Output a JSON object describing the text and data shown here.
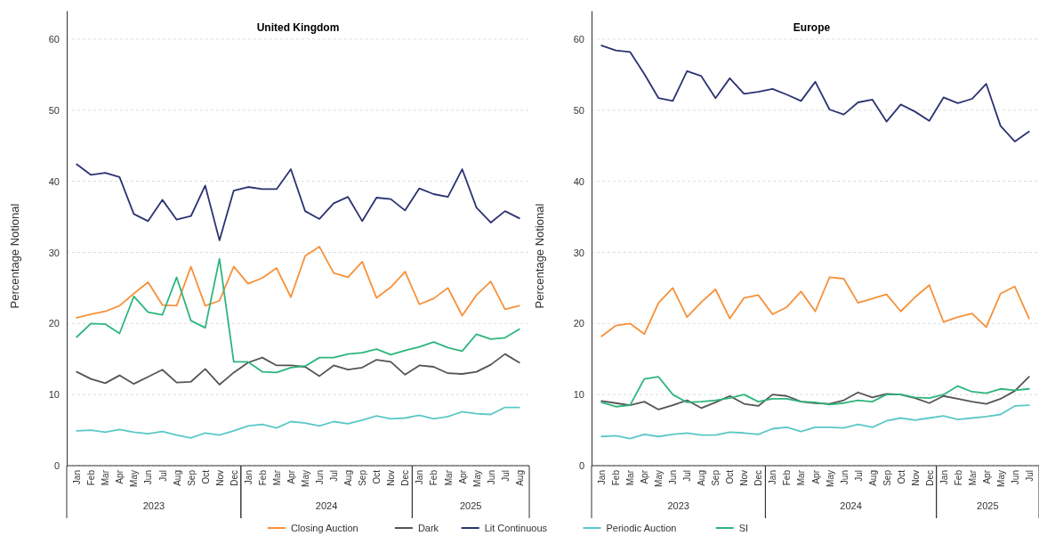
{
  "chart_data": [
    {
      "type": "line",
      "title": "United Kingdom",
      "ylabel": "Percentage Notional",
      "categories": [
        "Jan",
        "Feb",
        "Mar",
        "Apr",
        "May",
        "Jun",
        "Jul",
        "Aug",
        "Sep",
        "Oct",
        "Nov",
        "Dec",
        "Jan",
        "Feb",
        "Mar",
        "Apr",
        "May",
        "Jun",
        "Jul",
        "Aug",
        "Sep",
        "Oct",
        "Nov",
        "Dec",
        "Jan",
        "Feb",
        "Mar",
        "Apr",
        "May",
        "Jun",
        "Jul",
        "Aug"
      ],
      "annotations": [
        "2023",
        "2024",
        "2025"
      ],
      "ylim": [
        0,
        64
      ],
      "yticks": [
        0,
        10,
        20,
        30,
        40,
        50,
        60
      ],
      "grid": "y",
      "legend": "bottom",
      "marker": "none",
      "line_style": "solid",
      "series": [
        {
          "name": "Closing Auction",
          "color": "#f7913a",
          "values": [
            20.8,
            21.3,
            21.7,
            22.5,
            24.2,
            25.8,
            22.6,
            22.5,
            28.0,
            22.5,
            23.2,
            28.0,
            25.6,
            26.4,
            27.8,
            23.7,
            29.5,
            30.8,
            27.1,
            26.5,
            28.7,
            23.6,
            25.1,
            27.3,
            22.7,
            23.5,
            25.0,
            21.1,
            24.0,
            25.9,
            22.0,
            22.5
          ]
        },
        {
          "name": "Dark",
          "color": "#555555",
          "values": [
            13.2,
            12.2,
            11.6,
            12.7,
            11.5,
            12.5,
            13.5,
            11.7,
            11.8,
            13.6,
            11.4,
            13.1,
            14.5,
            15.2,
            14.1,
            14.1,
            13.9,
            12.6,
            14.1,
            13.5,
            13.8,
            14.9,
            14.6,
            12.8,
            14.1,
            13.9,
            13.0,
            12.9,
            13.2,
            14.2,
            15.7,
            14.5
          ]
        },
        {
          "name": "Lit Continuous",
          "color": "#2b3372",
          "values": [
            42.4,
            40.9,
            41.2,
            40.6,
            35.4,
            34.4,
            37.4,
            34.6,
            35.1,
            39.4,
            31.7,
            38.7,
            39.2,
            38.9,
            38.9,
            41.7,
            35.8,
            34.7,
            36.9,
            37.8,
            34.4,
            37.7,
            37.5,
            35.9,
            39.0,
            38.2,
            37.8,
            41.7,
            36.3,
            34.2,
            35.8,
            34.8
          ]
        },
        {
          "name": "Periodic Auction",
          "color": "#5cc7c7",
          "values": [
            4.9,
            5.0,
            4.7,
            5.1,
            4.7,
            4.5,
            4.8,
            4.3,
            3.9,
            4.6,
            4.3,
            4.9,
            5.6,
            5.8,
            5.3,
            6.2,
            6.0,
            5.6,
            6.2,
            5.9,
            6.4,
            7.0,
            6.6,
            6.7,
            7.1,
            6.6,
            6.9,
            7.6,
            7.3,
            7.2,
            8.2,
            8.2
          ]
        },
        {
          "name": "SI",
          "color": "#2db57c",
          "values": [
            18.1,
            20.0,
            19.9,
            18.6,
            23.8,
            21.6,
            21.2,
            26.5,
            20.4,
            19.4,
            29.1,
            14.6,
            14.6,
            13.2,
            13.1,
            13.8,
            14.0,
            15.2,
            15.2,
            15.7,
            15.9,
            16.4,
            15.6,
            16.2,
            16.7,
            17.4,
            16.6,
            16.1,
            18.5,
            17.8,
            18.0,
            19.2
          ]
        }
      ]
    },
    {
      "type": "line",
      "title": "Europe",
      "ylabel": "Percentage Notional",
      "categories": [
        "Jan",
        "Feb",
        "Mar",
        "Apr",
        "May",
        "Jun",
        "Jul",
        "Aug",
        "Sep",
        "Oct",
        "Nov",
        "Dec",
        "Jan",
        "Feb",
        "Mar",
        "Apr",
        "May",
        "Jun",
        "Jul",
        "Aug",
        "Sep",
        "Oct",
        "Nov",
        "Dec",
        "Jan",
        "Feb",
        "Mar",
        "Apr",
        "May",
        "Jun",
        "Jul"
      ],
      "annotations": [
        "2023",
        "2024",
        "2025"
      ],
      "ylim": [
        0,
        64
      ],
      "yticks": [
        0,
        10,
        20,
        30,
        40,
        50,
        60
      ],
      "grid": "y",
      "legend": "bottom",
      "marker": "none",
      "line_style": "solid",
      "series": [
        {
          "name": "Closing Auction",
          "color": "#f7913a",
          "values": [
            18.2,
            19.7,
            20.0,
            18.5,
            22.9,
            25.0,
            20.9,
            23.0,
            24.8,
            20.7,
            23.6,
            24.0,
            21.3,
            22.3,
            24.5,
            21.7,
            26.5,
            26.3,
            22.9,
            23.5,
            24.1,
            21.7,
            23.7,
            25.4,
            20.2,
            20.9,
            21.4,
            19.5,
            24.2,
            25.2,
            20.7
          ]
        },
        {
          "name": "Dark",
          "color": "#555555",
          "values": [
            9.1,
            8.8,
            8.5,
            9.0,
            7.9,
            8.5,
            9.2,
            8.1,
            8.9,
            9.8,
            8.7,
            8.4,
            10.0,
            9.8,
            9.0,
            8.8,
            8.7,
            9.2,
            10.3,
            9.6,
            10.1,
            10.0,
            9.5,
            8.8,
            9.8,
            9.4,
            9.0,
            8.7,
            9.4,
            10.5,
            12.5
          ]
        },
        {
          "name": "Lit Continuous",
          "color": "#2b3372",
          "values": [
            59.1,
            58.4,
            58.2,
            55.1,
            51.7,
            51.3,
            55.5,
            54.8,
            51.7,
            54.5,
            52.3,
            52.6,
            53.0,
            52.2,
            51.3,
            54.0,
            50.1,
            49.4,
            51.1,
            51.5,
            48.4,
            50.8,
            49.8,
            48.5,
            51.8,
            51.0,
            51.6,
            53.7,
            47.8,
            45.6,
            47.0
          ]
        },
        {
          "name": "Periodic Auction",
          "color": "#5cc7c7",
          "values": [
            4.1,
            4.2,
            3.8,
            4.4,
            4.1,
            4.4,
            4.6,
            4.3,
            4.3,
            4.7,
            4.6,
            4.4,
            5.2,
            5.4,
            4.8,
            5.4,
            5.4,
            5.3,
            5.8,
            5.4,
            6.3,
            6.7,
            6.4,
            6.7,
            7.0,
            6.5,
            6.7,
            6.9,
            7.2,
            8.4,
            8.5
          ]
        },
        {
          "name": "SI",
          "color": "#2db57c",
          "values": [
            8.9,
            8.3,
            8.5,
            12.2,
            12.5,
            10.0,
            8.9,
            9.0,
            9.2,
            9.5,
            10.0,
            9.0,
            9.4,
            9.4,
            9.0,
            8.9,
            8.6,
            8.8,
            9.2,
            9.0,
            10.0,
            10.0,
            9.6,
            9.5,
            10.0,
            11.2,
            10.4,
            10.2,
            10.8,
            10.6,
            10.8
          ]
        }
      ]
    }
  ]
}
